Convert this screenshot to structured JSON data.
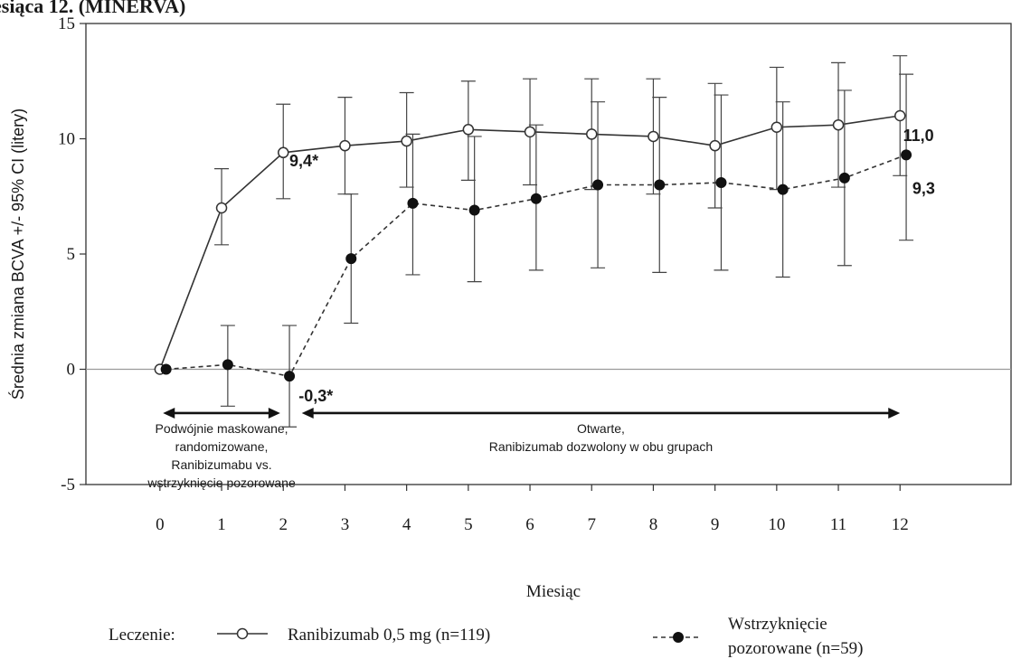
{
  "header_fragment": "esiąca 12. (MINERVA)",
  "chart_data": {
    "type": "line",
    "title": "",
    "xlabel": "Miesiąc",
    "ylabel": "Średnia zmiana BCVA +/- 95% CI  (litery)",
    "xlim": [
      -1.2,
      13.8
    ],
    "ylim": [
      -5,
      15
    ],
    "x_ticks": [
      0,
      1,
      2,
      3,
      4,
      5,
      6,
      7,
      8,
      9,
      10,
      11,
      12
    ],
    "y_ticks": [
      -5,
      0,
      5,
      10,
      15
    ],
    "reference_line_y": 0,
    "grid": false,
    "series": [
      {
        "name": "Ranibizumab 0,5 mg (n=119)",
        "marker": "open-circle",
        "line_style": "solid",
        "x": [
          0,
          1,
          2,
          3,
          4,
          5,
          6,
          7,
          8,
          9,
          10,
          11,
          12
        ],
        "y": [
          0.0,
          7.0,
          9.4,
          9.7,
          9.9,
          10.4,
          10.3,
          10.2,
          10.1,
          9.7,
          10.5,
          10.6,
          11.0
        ],
        "ci_low": [
          0.0,
          5.4,
          7.4,
          7.6,
          7.9,
          8.2,
          8.0,
          7.8,
          7.6,
          7.0,
          7.8,
          7.9,
          8.4
        ],
        "ci_high": [
          0.0,
          8.7,
          11.5,
          11.8,
          12.0,
          12.5,
          12.6,
          12.6,
          12.6,
          12.4,
          13.1,
          13.3,
          13.6
        ]
      },
      {
        "name": "Wstrzyknięcie pozorowane (n=59)",
        "marker": "filled-circle",
        "line_style": "dashed",
        "x": [
          0.1,
          1.1,
          2.1,
          3.1,
          4.1,
          5.1,
          6.1,
          7.1,
          8.1,
          9.1,
          10.1,
          11.1,
          12.1
        ],
        "y": [
          0.0,
          0.2,
          -0.3,
          4.8,
          7.2,
          6.9,
          7.4,
          8.0,
          8.0,
          8.1,
          7.8,
          8.3,
          9.3
        ],
        "ci_low": [
          0.0,
          -1.6,
          -2.5,
          2.0,
          4.1,
          3.8,
          4.3,
          4.4,
          4.2,
          4.3,
          4.0,
          4.5,
          5.6
        ],
        "ci_high": [
          0.0,
          1.9,
          1.9,
          7.6,
          10.2,
          10.1,
          10.6,
          11.6,
          11.8,
          11.9,
          11.6,
          12.1,
          12.8
        ]
      }
    ],
    "callouts": [
      {
        "text": "9,4*",
        "x": 2.1,
        "y": 8.8
      },
      {
        "text": "-0,3*",
        "x": 2.25,
        "y": -1.4
      },
      {
        "text": "11,0",
        "x": 12.05,
        "y": 9.9
      },
      {
        "text": "9,3",
        "x": 12.2,
        "y": 7.6
      }
    ],
    "periods": [
      {
        "x_start": 0.05,
        "x_end": 1.95,
        "y": -1.9,
        "lines": [
          "Podwójnie maskowane,",
          "randomizowane,",
          "Ranibizumabu vs.",
          "wstrzyknięcie pozorowane"
        ]
      },
      {
        "x_start": 2.3,
        "x_end": 12.0,
        "y": -1.9,
        "lines": [
          "Otwarte,",
          "Ranibizumab  dozwolony w obu grupach"
        ]
      }
    ],
    "legend": {
      "position": "bottom",
      "title": "Leczenie:",
      "items": [
        {
          "label": "Ranibizumab 0,5 mg (n=119)",
          "marker": "open-circle",
          "line_style": "solid"
        },
        {
          "label_lines": [
            "Wstrzyknięcie",
            "pozorowane (n=59)"
          ],
          "marker": "filled-circle",
          "line_style": "dashed"
        }
      ]
    }
  }
}
